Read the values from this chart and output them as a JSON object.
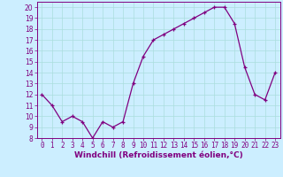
{
  "x": [
    0,
    1,
    2,
    3,
    4,
    5,
    6,
    7,
    8,
    9,
    10,
    11,
    12,
    13,
    14,
    15,
    16,
    17,
    18,
    19,
    20,
    21,
    22,
    23
  ],
  "y": [
    12,
    11,
    9.5,
    10,
    9.5,
    8,
    9.5,
    9,
    9.5,
    13,
    15.5,
    17,
    17.5,
    18,
    18.5,
    19,
    19.5,
    20,
    20,
    18.5,
    14.5,
    12,
    11.5,
    14
  ],
  "line_color": "#800080",
  "marker": "+",
  "marker_color": "#800080",
  "bg_color": "#cceeff",
  "grid_color": "#aadddd",
  "xlabel": "Windchill (Refroidissement éolien,°C)",
  "xlabel_color": "#800080",
  "tick_color": "#800080",
  "ylim": [
    8,
    20.5
  ],
  "xlim": [
    -0.5,
    23.5
  ],
  "yticks": [
    8,
    9,
    10,
    11,
    12,
    13,
    14,
    15,
    16,
    17,
    18,
    19,
    20
  ],
  "xticks": [
    0,
    1,
    2,
    3,
    4,
    5,
    6,
    7,
    8,
    9,
    10,
    11,
    12,
    13,
    14,
    15,
    16,
    17,
    18,
    19,
    20,
    21,
    22,
    23
  ],
  "spine_color": "#800080",
  "tick_fontsize": 5.5,
  "xlabel_fontsize": 6.5,
  "linewidth": 0.9,
  "markersize": 2.5
}
